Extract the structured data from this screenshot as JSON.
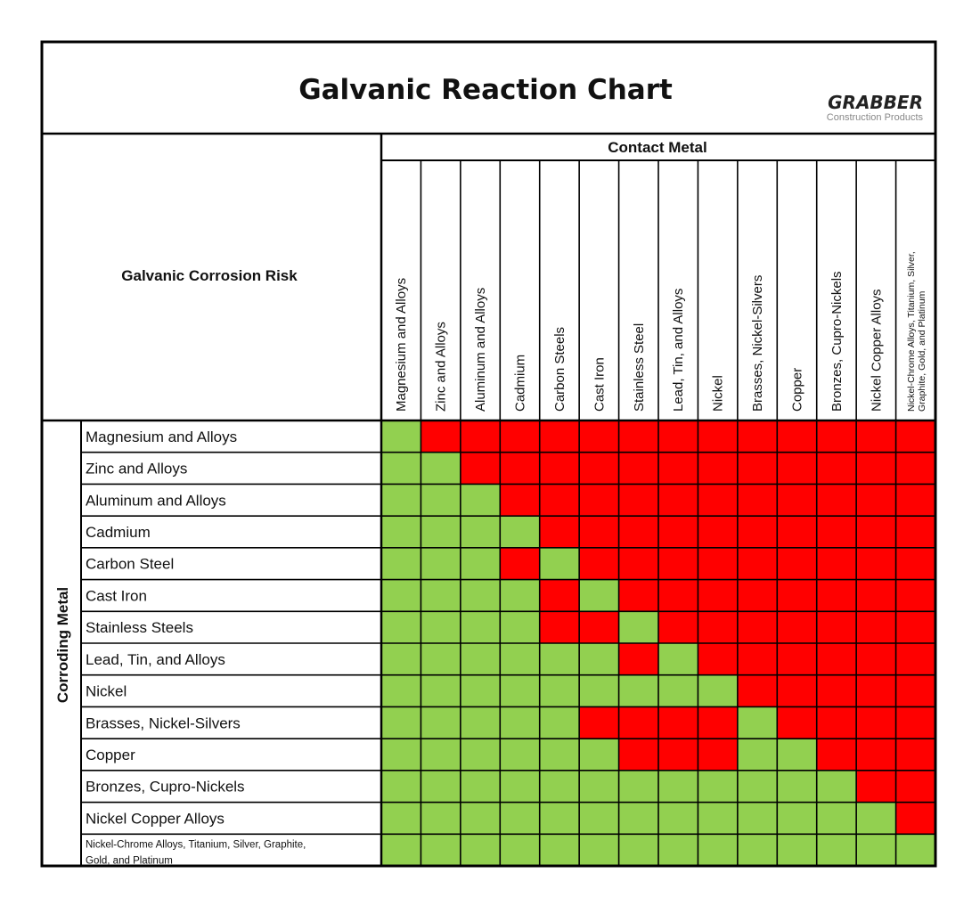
{
  "title": "Galvanic Reaction Chart",
  "logo": {
    "name": "GRABBER",
    "sub": "Construction Products"
  },
  "corner_label": "Galvanic Corrosion Risk",
  "column_header": "Contact Metal",
  "row_header": "Corroding Metal",
  "colors": {
    "compatible": "#92d050",
    "risk": "#ff0000",
    "border": "#000000"
  },
  "chart_data": {
    "type": "heatmap",
    "title": "Galvanic Reaction Chart",
    "xlabel": "Contact Metal",
    "ylabel": "Corroding Metal",
    "columns": [
      [
        "Magnesium and Alloys"
      ],
      [
        "Zinc and Alloys"
      ],
      [
        "Aluminum and Alloys"
      ],
      [
        "Cadmium"
      ],
      [
        "Carbon Steels"
      ],
      [
        "Cast Iron"
      ],
      [
        "Stainless Steel"
      ],
      [
        "Lead, Tin, and Alloys"
      ],
      [
        "Nickel"
      ],
      [
        "Brasses, Nickel-Silvers"
      ],
      [
        "Copper"
      ],
      [
        "Bronzes, Cupro-Nickels"
      ],
      [
        "Nickel Copper Alloys"
      ],
      [
        "Nickel-Chrome Alloys, Titanium, Silver,",
        "Graphite, Gold, and Platinum"
      ]
    ],
    "rows": [
      [
        "Magnesium and Alloys"
      ],
      [
        "Zinc and Alloys"
      ],
      [
        "Aluminum and Alloys"
      ],
      [
        "Cadmium"
      ],
      [
        "Carbon Steel"
      ],
      [
        "Cast Iron"
      ],
      [
        "Stainless Steels"
      ],
      [
        "Lead, Tin, and Alloys"
      ],
      [
        "Nickel"
      ],
      [
        "Brasses, Nickel-Silvers"
      ],
      [
        "Copper"
      ],
      [
        "Bronzes, Cupro-Nickels"
      ],
      [
        "Nickel Copper Alloys"
      ],
      [
        "Nickel-Chrome Alloys, Titanium, Silver, Graphite,",
        "Gold, and Platinum"
      ]
    ],
    "values_legend": {
      "0": "green",
      "1": "red"
    },
    "values": [
      [
        0,
        1,
        1,
        1,
        1,
        1,
        1,
        1,
        1,
        1,
        1,
        1,
        1,
        1
      ],
      [
        0,
        0,
        1,
        1,
        1,
        1,
        1,
        1,
        1,
        1,
        1,
        1,
        1,
        1
      ],
      [
        0,
        0,
        0,
        1,
        1,
        1,
        1,
        1,
        1,
        1,
        1,
        1,
        1,
        1
      ],
      [
        0,
        0,
        0,
        0,
        1,
        1,
        1,
        1,
        1,
        1,
        1,
        1,
        1,
        1
      ],
      [
        0,
        0,
        0,
        1,
        0,
        1,
        1,
        1,
        1,
        1,
        1,
        1,
        1,
        1
      ],
      [
        0,
        0,
        0,
        0,
        1,
        0,
        1,
        1,
        1,
        1,
        1,
        1,
        1,
        1
      ],
      [
        0,
        0,
        0,
        0,
        1,
        1,
        0,
        1,
        1,
        1,
        1,
        1,
        1,
        1
      ],
      [
        0,
        0,
        0,
        0,
        0,
        0,
        1,
        0,
        1,
        1,
        1,
        1,
        1,
        1
      ],
      [
        0,
        0,
        0,
        0,
        0,
        0,
        0,
        0,
        0,
        1,
        1,
        1,
        1,
        1
      ],
      [
        0,
        0,
        0,
        0,
        0,
        1,
        1,
        1,
        1,
        0,
        1,
        1,
        1,
        1
      ],
      [
        0,
        0,
        0,
        0,
        0,
        0,
        1,
        1,
        1,
        0,
        0,
        1,
        1,
        1
      ],
      [
        0,
        0,
        0,
        0,
        0,
        0,
        0,
        0,
        0,
        0,
        0,
        0,
        1,
        1
      ],
      [
        0,
        0,
        0,
        0,
        0,
        0,
        0,
        0,
        0,
        0,
        0,
        0,
        0,
        1
      ],
      [
        0,
        0,
        0,
        0,
        0,
        0,
        0,
        0,
        0,
        0,
        0,
        0,
        0,
        0
      ]
    ]
  }
}
